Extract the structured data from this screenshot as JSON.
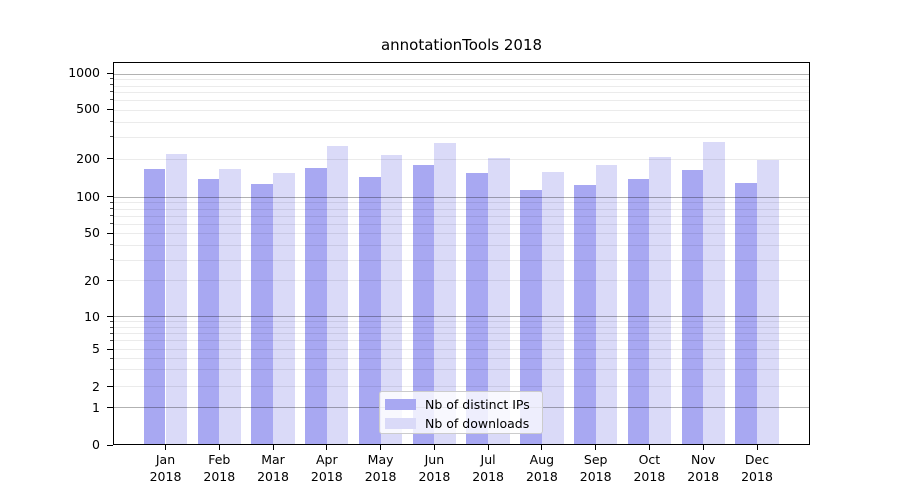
{
  "chart_data": {
    "type": "bar",
    "title": "annotationTools 2018",
    "months": [
      "Jan",
      "Feb",
      "Mar",
      "Apr",
      "May",
      "Jun",
      "Jul",
      "Aug",
      "Sep",
      "Oct",
      "Nov",
      "Dec"
    ],
    "year_label": "2018",
    "categories": [
      "Jan 2018",
      "Feb 2018",
      "Mar 2018",
      "Apr 2018",
      "May 2018",
      "Jun 2018",
      "Jul 2018",
      "Aug 2018",
      "Sep 2018",
      "Oct 2018",
      "Nov 2018",
      "Dec 2018"
    ],
    "series": [
      {
        "name": "Nb of distinct IPs",
        "color": "#a8a8f2",
        "values": [
          168,
          140,
          127,
          169,
          143,
          179,
          155,
          114,
          124,
          139,
          164,
          129
        ]
      },
      {
        "name": "Nb of downloads",
        "color": "#dadaf8",
        "values": [
          222,
          166,
          154,
          254,
          215,
          270,
          204,
          159,
          179,
          209,
          276,
          198
        ]
      }
    ],
    "y_axis": {
      "scale": "log-like with 0 baseline (symlog)",
      "tick_values": [
        0,
        1,
        2,
        5,
        10,
        20,
        50,
        100,
        200,
        500,
        1000
      ],
      "tick_labels": [
        "0",
        "1",
        "2",
        "5",
        "10",
        "20",
        "50",
        "100",
        "200",
        "500",
        "1000"
      ],
      "ylim": [
        0,
        1300
      ]
    },
    "x_axis": {
      "tick_labels_line1": [
        "Jan",
        "Feb",
        "Mar",
        "Apr",
        "May",
        "Jun",
        "Jul",
        "Aug",
        "Sep",
        "Oct",
        "Nov",
        "Dec"
      ],
      "tick_labels_line2": [
        "2018",
        "2018",
        "2018",
        "2018",
        "2018",
        "2018",
        "2018",
        "2018",
        "2018",
        "2018",
        "2018",
        "2018"
      ]
    },
    "legend": {
      "position": "lower center",
      "entries": [
        "Nb of distinct IPs",
        "Nb of downloads"
      ]
    },
    "grid": {
      "visible": true,
      "major_color": "#b3b3b3",
      "minor_color": "#ebebeb"
    },
    "colors": {
      "background": "#ffffff",
      "spine": "#000000",
      "text": "#000000",
      "bar_distinct_ips": "#a8a8f2",
      "bar_downloads": "#dadaf8",
      "legend_border": "#cccccc"
    }
  }
}
